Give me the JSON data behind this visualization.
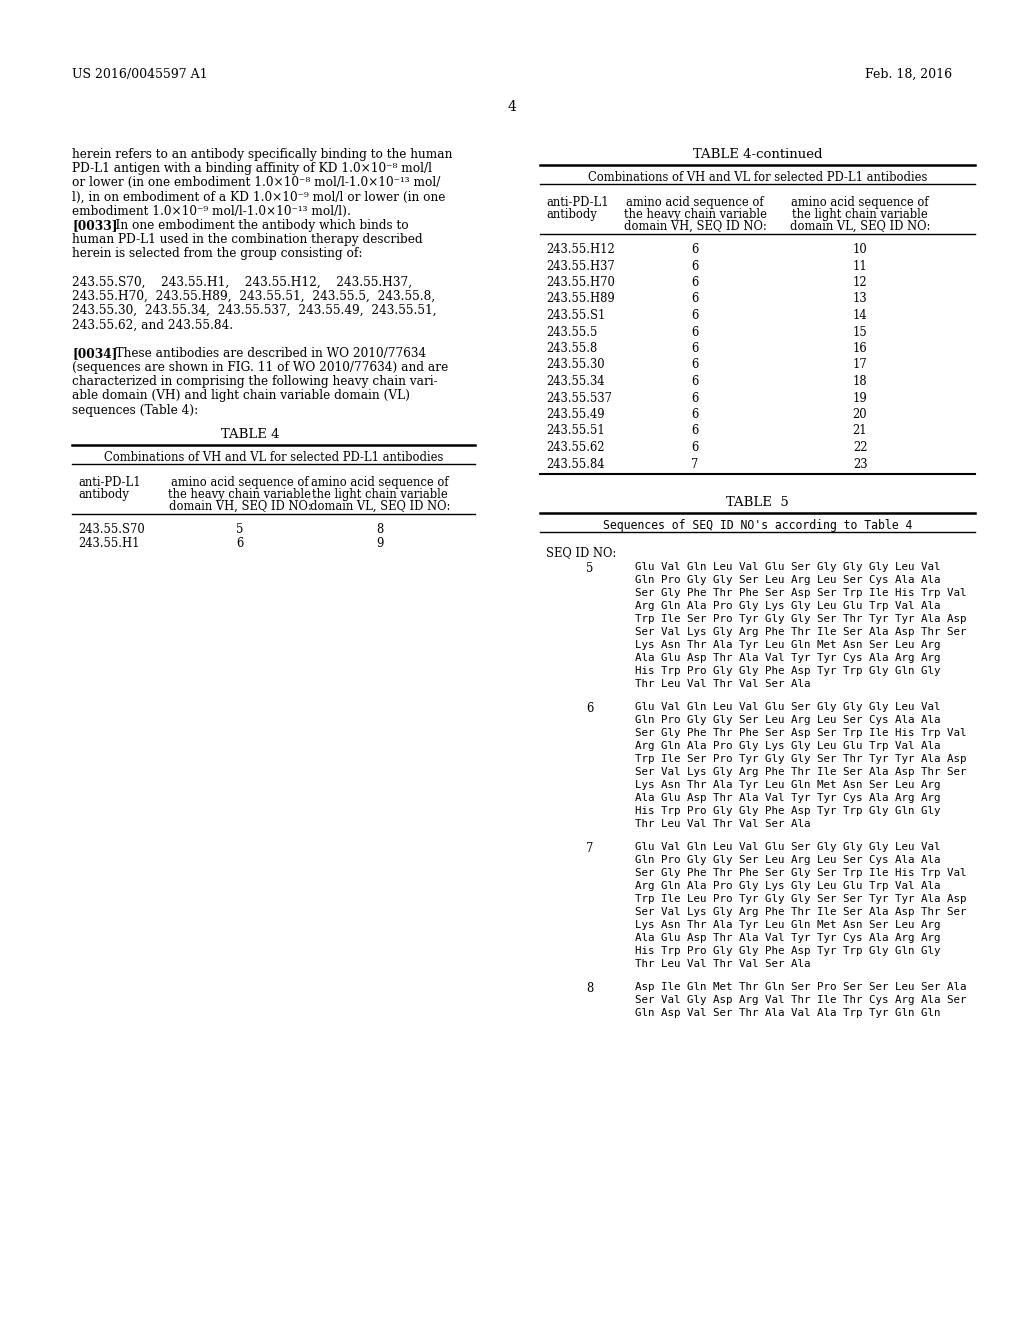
{
  "header_left": "US 2016/0045597 A1",
  "header_right": "Feb. 18, 2016",
  "page_number": "4",
  "table4_title": "TABLE 4",
  "table4_subtitle": "Combinations of VH and VL for selected PD-L1 antibodies",
  "table4_rows": [
    [
      "243.55.S70",
      "5",
      "8"
    ],
    [
      "243.55.H1",
      "6",
      "9"
    ]
  ],
  "table4cont_title": "TABLE 4-continued",
  "table4cont_subtitle": "Combinations of VH and VL for selected PD-L1 antibodies",
  "table4cont_rows": [
    [
      "243.55.H12",
      "6",
      "10"
    ],
    [
      "243.55.H37",
      "6",
      "11"
    ],
    [
      "243.55.H70",
      "6",
      "12"
    ],
    [
      "243.55.H89",
      "6",
      "13"
    ],
    [
      "243.55.S1",
      "6",
      "14"
    ],
    [
      "243.55.5",
      "6",
      "15"
    ],
    [
      "243.55.8",
      "6",
      "16"
    ],
    [
      "243.55.30",
      "6",
      "17"
    ],
    [
      "243.55.34",
      "6",
      "18"
    ],
    [
      "243.55.537",
      "6",
      "19"
    ],
    [
      "243.55.49",
      "6",
      "20"
    ],
    [
      "243.55.51",
      "6",
      "21"
    ],
    [
      "243.55.62",
      "6",
      "22"
    ],
    [
      "243.55.84",
      "7",
      "23"
    ]
  ],
  "table5_title": "TABLE  5",
  "table5_subtitle": "Sequences of SEQ ID NO's according to Table 4",
  "table5_seqid_label": "SEQ ID NO:",
  "table5_entries": [
    {
      "id": "5",
      "lines": [
        "Glu Val Gln Leu Val Glu Ser Gly Gly Gly Leu Val",
        "Gln Pro Gly Gly Ser Leu Arg Leu Ser Cys Ala Ala",
        "Ser Gly Phe Thr Phe Ser Asp Ser Trp Ile His Trp Val",
        "Arg Gln Ala Pro Gly Lys Gly Leu Glu Trp Val Ala",
        "Trp Ile Ser Pro Tyr Gly Gly Ser Thr Tyr Tyr Ala Asp",
        "Ser Val Lys Gly Arg Phe Thr Ile Ser Ala Asp Thr Ser",
        "Lys Asn Thr Ala Tyr Leu Gln Met Asn Ser Leu Arg",
        "Ala Glu Asp Thr Ala Val Tyr Tyr Cys Ala Arg Arg",
        "His Trp Pro Gly Gly Phe Asp Tyr Trp Gly Gln Gly",
        "Thr Leu Val Thr Val Ser Ala"
      ]
    },
    {
      "id": "6",
      "lines": [
        "Glu Val Gln Leu Val Glu Ser Gly Gly Gly Leu Val",
        "Gln Pro Gly Gly Ser Leu Arg Leu Ser Cys Ala Ala",
        "Ser Gly Phe Thr Phe Ser Asp Ser Trp Ile His Trp Val",
        "Arg Gln Ala Pro Gly Lys Gly Leu Glu Trp Val Ala",
        "Trp Ile Ser Pro Tyr Gly Gly Ser Thr Tyr Tyr Ala Asp",
        "Ser Val Lys Gly Arg Phe Thr Ile Ser Ala Asp Thr Ser",
        "Lys Asn Thr Ala Tyr Leu Gln Met Asn Ser Leu Arg",
        "Ala Glu Asp Thr Ala Val Tyr Tyr Cys Ala Arg Arg",
        "His Trp Pro Gly Gly Phe Asp Tyr Trp Gly Gln Gly",
        "Thr Leu Val Thr Val Ser Ala"
      ]
    },
    {
      "id": "7",
      "lines": [
        "Glu Val Gln Leu Val Glu Ser Gly Gly Gly Leu Val",
        "Gln Pro Gly Gly Ser Leu Arg Leu Ser Cys Ala Ala",
        "Ser Gly Phe Thr Phe Ser Gly Ser Trp Ile His Trp Val",
        "Arg Gln Ala Pro Gly Lys Gly Leu Glu Trp Val Ala",
        "Trp Ile Leu Pro Tyr Gly Gly Ser Ser Tyr Tyr Ala Asp",
        "Ser Val Lys Gly Arg Phe Thr Ile Ser Ala Asp Thr Ser",
        "Lys Asn Thr Ala Tyr Leu Gln Met Asn Ser Leu Arg",
        "Ala Glu Asp Thr Ala Val Tyr Tyr Cys Ala Arg Arg",
        "His Trp Pro Gly Gly Phe Asp Tyr Trp Gly Gln Gly",
        "Thr Leu Val Thr Val Ser Ala"
      ]
    },
    {
      "id": "8",
      "lines": [
        "Asp Ile Gln Met Thr Gln Ser Pro Ser Ser Leu Ser Ala",
        "Ser Val Gly Asp Arg Val Thr Ile Thr Cys Arg Ala Ser",
        "Gln Asp Val Ser Thr Ala Val Ala Trp Tyr Gln Gln"
      ]
    }
  ],
  "bg_color": "#ffffff",
  "text_color": "#000000"
}
